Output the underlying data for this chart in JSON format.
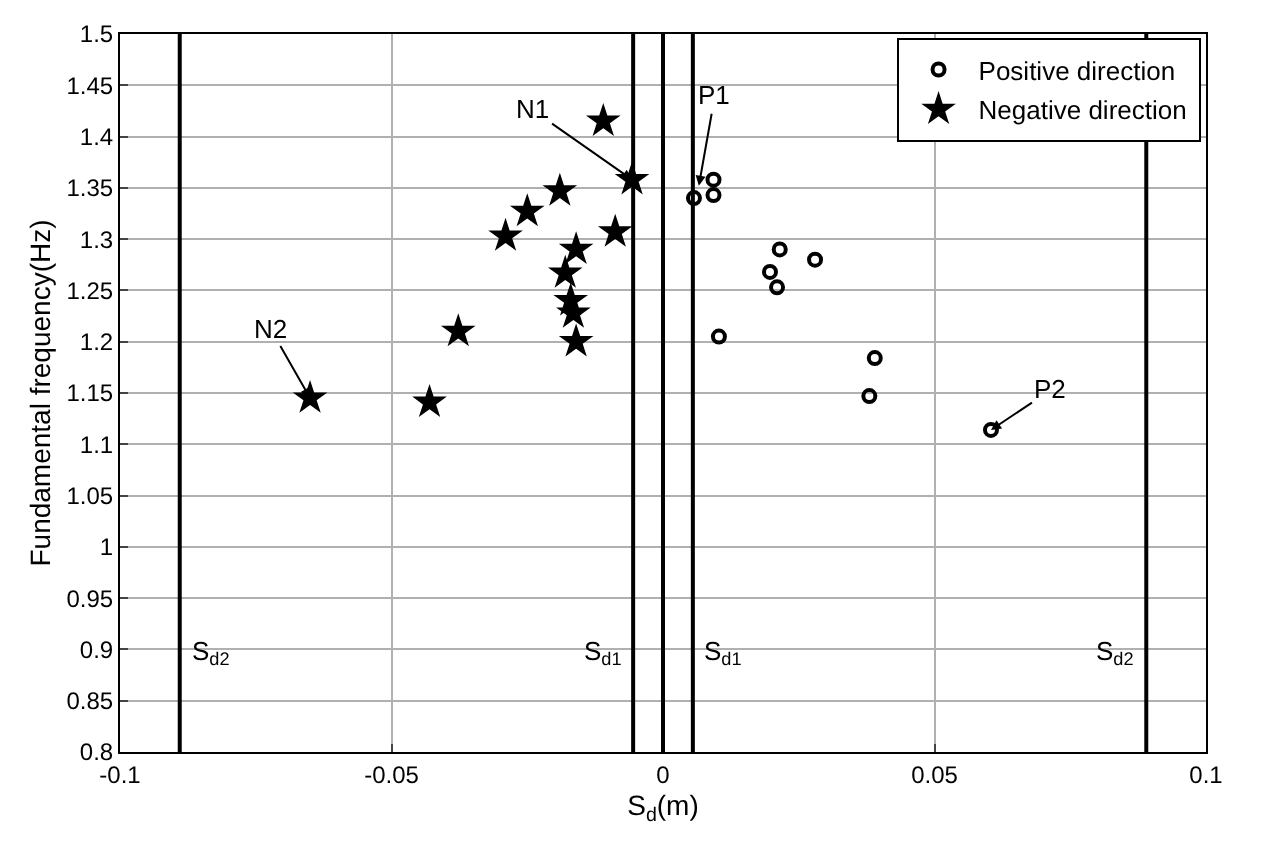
{
  "chart_data": {
    "type": "scatter",
    "xlabel": "S$_{d}$(m)",
    "ylabel": "Fundamental frequency(Hz)",
    "xlim": [
      -0.1,
      0.1
    ],
    "ylim": [
      0.8,
      1.5
    ],
    "xticks": [
      -0.1,
      -0.05,
      0,
      0.05,
      0.1
    ],
    "yticks": [
      0.8,
      0.85,
      0.9,
      0.95,
      1,
      1.05,
      1.1,
      1.15,
      1.2,
      1.25,
      1.3,
      1.35,
      1.4,
      1.45,
      1.5
    ],
    "grid": true,
    "legend": "top right",
    "series": [
      {
        "name": "Positive direction",
        "color": "#000000",
        "marker": "circle",
        "x": [
          0.0093,
          0.0093,
          0.0057,
          0.0215,
          0.028,
          0.0197,
          0.021,
          0.0103,
          0.039,
          0.038,
          0.0604
        ],
        "values": [
          1.358,
          1.343,
          1.34,
          1.29,
          1.28,
          1.268,
          1.253,
          1.205,
          1.184,
          1.147,
          1.114
        ]
      },
      {
        "name": "Negative direction",
        "color": "#000000",
        "marker": "star",
        "x": [
          -0.011,
          -0.0057,
          -0.019,
          -0.025,
          -0.029,
          -0.0088,
          -0.016,
          -0.018,
          -0.017,
          -0.0165,
          -0.016,
          -0.0377,
          -0.065,
          -0.043
        ],
        "values": [
          1.415,
          1.358,
          1.347,
          1.327,
          1.303,
          1.307,
          1.29,
          1.267,
          1.24,
          1.228,
          1.2,
          1.21,
          1.145,
          1.141
        ]
      }
    ],
    "ref_lines": [
      {
        "axis": "x",
        "value": -0.089,
        "label": "S$_{d2}$"
      },
      {
        "axis": "x",
        "value": -0.0055,
        "label": "S$_{d1}$"
      },
      {
        "axis": "x",
        "value": 0
      },
      {
        "axis": "x",
        "value": 0.0055,
        "label": "S$_{d1}$"
      },
      {
        "axis": "x",
        "value": 0.089,
        "label": "S$_{d2}$"
      }
    ],
    "annotations": [
      {
        "text": "P1",
        "x": 0.0066,
        "y": 1.352
      },
      {
        "text": "P2",
        "x": 0.0604,
        "y": 1.114
      },
      {
        "text": "N1",
        "x": -0.0057,
        "y": 1.358
      },
      {
        "text": "N2",
        "x": -0.065,
        "y": 1.145
      }
    ]
  }
}
